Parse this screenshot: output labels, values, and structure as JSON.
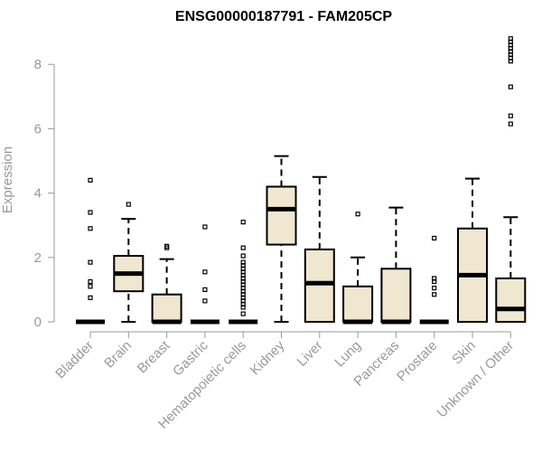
{
  "chart_data": {
    "type": "boxplot",
    "title": "ENSG00000187791 - FAM205CP",
    "xlabel": "",
    "ylabel": "Expression",
    "ylim": [
      0,
      9
    ],
    "yticks": [
      0,
      2,
      4,
      6,
      8
    ],
    "grid": false,
    "legend": "none",
    "colors": {
      "box_fill": "#EFE7D0",
      "stroke": "#000000",
      "axis_text": "#999999"
    },
    "categories": [
      "Bladder",
      "Brain",
      "Breast",
      "Gastric",
      "Hematopoietic cells",
      "Kidney",
      "Liver",
      "Lung",
      "Pancreas",
      "Prostate",
      "Skin",
      "Unknown / Other"
    ],
    "boxes": [
      {
        "q1": 0,
        "median": 0,
        "q3": 0,
        "whisker_low": 0,
        "whisker_high": 0,
        "outliers": [
          0.75,
          1.1,
          1.25,
          1.85,
          2.9,
          3.4,
          4.4
        ]
      },
      {
        "q1": 0.95,
        "median": 1.5,
        "q3": 2.05,
        "whisker_low": 0,
        "whisker_high": 3.2,
        "outliers": [
          3.65
        ]
      },
      {
        "q1": 0,
        "median": 0,
        "q3": 0.85,
        "whisker_low": 0,
        "whisker_high": 1.95,
        "outliers": [
          2.3,
          2.35
        ]
      },
      {
        "q1": 0,
        "median": 0,
        "q3": 0,
        "whisker_low": 0,
        "whisker_high": 0,
        "outliers": [
          0.65,
          1.0,
          1.55,
          2.95
        ]
      },
      {
        "q1": 0,
        "median": 0,
        "q3": 0,
        "whisker_low": 0,
        "whisker_high": 0,
        "outliers": [
          0.25,
          0.45,
          0.55,
          0.65,
          0.75,
          0.85,
          0.95,
          1.05,
          1.15,
          1.25,
          1.35,
          1.45,
          1.55,
          1.65,
          1.75,
          1.85,
          2.05,
          2.3,
          3.1
        ]
      },
      {
        "q1": 2.4,
        "median": 3.5,
        "q3": 4.2,
        "whisker_low": 0,
        "whisker_high": 5.15,
        "outliers": []
      },
      {
        "q1": 0,
        "median": 1.2,
        "q3": 2.25,
        "whisker_low": 0,
        "whisker_high": 4.5,
        "outliers": []
      },
      {
        "q1": 0,
        "median": 0,
        "q3": 1.1,
        "whisker_low": 0,
        "whisker_high": 2.0,
        "outliers": [
          3.35
        ]
      },
      {
        "q1": 0,
        "median": 0,
        "q3": 1.65,
        "whisker_low": 0,
        "whisker_high": 3.55,
        "outliers": []
      },
      {
        "q1": 0,
        "median": 0,
        "q3": 0,
        "whisker_low": 0,
        "whisker_high": 0,
        "outliers": [
          0.85,
          1.05,
          1.25,
          1.35,
          2.6
        ]
      },
      {
        "q1": 0,
        "median": 1.45,
        "q3": 2.9,
        "whisker_low": 0,
        "whisker_high": 4.45,
        "outliers": []
      },
      {
        "q1": 0,
        "median": 0.4,
        "q3": 1.35,
        "whisker_low": 0,
        "whisker_high": 3.25,
        "outliers": [
          6.15,
          6.4,
          7.3,
          8.1,
          8.2,
          8.3,
          8.4,
          8.5,
          8.6,
          8.7,
          8.8
        ]
      }
    ]
  }
}
